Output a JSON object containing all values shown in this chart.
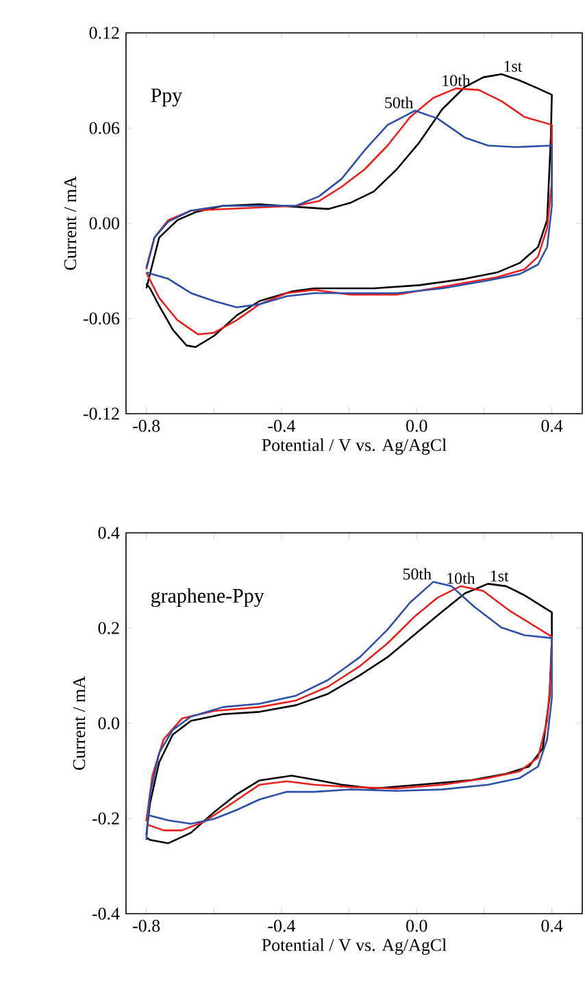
{
  "chart_data": [
    {
      "type": "line",
      "xlabel": "Potential / V vs. Ag/AgCl",
      "ylabel": "Current / mA",
      "xlim": [
        -0.86,
        0.49
      ],
      "ylim": [
        -0.12,
        0.12
      ],
      "xticks": [
        {
          "value": -0.8,
          "label": "-0.8"
        },
        {
          "value": -0.6,
          "label": null
        },
        {
          "value": -0.4,
          "label": "-0.4"
        },
        {
          "value": -0.2,
          "label": null
        },
        {
          "value": 0,
          "label": "0.0"
        },
        {
          "value": 0.2,
          "label": null
        },
        {
          "value": 0.4,
          "label": "0.4"
        }
      ],
      "yticks": [
        {
          "value": -0.12,
          "label": "-0.12"
        },
        {
          "value": -0.06,
          "label": "-0.06"
        },
        {
          "value": 0,
          "label": "0.00"
        },
        {
          "value": 0.06,
          "label": "0.06"
        },
        {
          "value": 0.12,
          "label": "0.12"
        }
      ],
      "annotations": [
        "Ppy"
      ],
      "series": [
        {
          "name": "1st",
          "color": "#000000",
          "x": [
            -0.8,
            -0.762,
            -0.708,
            -0.654,
            -0.573,
            -0.465,
            -0.33,
            -0.262,
            -0.195,
            -0.127,
            -0.059,
            0.008,
            0.076,
            0.143,
            0.197,
            0.251,
            0.305,
            0.359,
            0.4,
            0.397,
            0.386,
            0.359,
            0.305,
            0.238,
            0.143,
            0.008,
            -0.127,
            -0.303,
            -0.37,
            -0.465,
            -0.532,
            -0.6,
            -0.654,
            -0.681,
            -0.722,
            -0.762,
            -0.789,
            -0.8
          ],
          "values": [
            -0.041,
            -0.009,
            0.002,
            0.007,
            0.011,
            0.012,
            0.01,
            0.009,
            0.013,
            0.02,
            0.034,
            0.051,
            0.072,
            0.086,
            0.092,
            0.094,
            0.09,
            0.085,
            0.081,
            0.054,
            0.002,
            -0.015,
            -0.025,
            -0.031,
            -0.035,
            -0.039,
            -0.041,
            -0.041,
            -0.043,
            -0.049,
            -0.058,
            -0.071,
            -0.078,
            -0.077,
            -0.067,
            -0.052,
            -0.041,
            -0.038
          ]
        },
        {
          "name": "10th",
          "color": "#e8201e",
          "x": [
            -0.8,
            -0.776,
            -0.735,
            -0.668,
            -0.573,
            -0.465,
            -0.357,
            -0.289,
            -0.222,
            -0.154,
            -0.086,
            -0.019,
            0.049,
            0.116,
            0.184,
            0.251,
            0.319,
            0.4,
            0.4,
            0.386,
            0.359,
            0.319,
            0.238,
            0.076,
            -0.059,
            -0.195,
            -0.303,
            -0.384,
            -0.465,
            -0.532,
            -0.6,
            -0.647,
            -0.708,
            -0.762,
            -0.8
          ],
          "values": [
            -0.029,
            -0.009,
            0.002,
            0.008,
            null,
            null,
            0.011,
            0.014,
            0.023,
            0.034,
            0.049,
            0.067,
            0.079,
            0.085,
            0.084,
            0.077,
            0.067,
            0.062,
            0.026,
            -0.003,
            -0.021,
            -0.029,
            -0.034,
            -0.04,
            -0.045,
            -0.045,
            -0.042,
            -0.044,
            -0.051,
            -0.061,
            -0.069,
            -0.07,
            -0.061,
            -0.047,
            -0.031
          ]
        },
        {
          "name": "50th",
          "color": "#2e4fa8",
          "x": [
            -0.8,
            -0.776,
            -0.735,
            -0.668,
            -0.573,
            -0.465,
            -0.357,
            -0.289,
            -0.222,
            -0.154,
            -0.086,
            -0.005,
            0.062,
            0.143,
            0.211,
            0.292,
            0.4,
            0.4,
            0.386,
            0.359,
            0.305,
            0.211,
            0.076,
            -0.059,
            -0.195,
            -0.303,
            -0.384,
            -0.465,
            -0.532,
            -0.6,
            -0.668,
            -0.735,
            -0.8
          ],
          "values": [
            -0.028,
            -0.009,
            0.001,
            0.008,
            0.011,
            null,
            0.011,
            0.017,
            0.028,
            0.046,
            0.062,
            0.071,
            0.066,
            0.054,
            0.049,
            0.048,
            0.049,
            0.011,
            -0.015,
            -0.026,
            -0.032,
            -0.036,
            -0.041,
            -0.044,
            -0.044,
            -0.044,
            -0.046,
            -0.051,
            -0.053,
            -0.049,
            -0.044,
            -0.035,
            -0.031
          ]
        }
      ]
    },
    {
      "type": "line",
      "xlabel": "Potential / V vs. Ag/AgCl",
      "ylabel": "Current / mA",
      "xlim": [
        -0.86,
        0.49
      ],
      "ylim": [
        -0.4,
        0.4
      ],
      "xticks": [
        {
          "value": -0.8,
          "label": "-0.8"
        },
        {
          "value": -0.6,
          "label": null
        },
        {
          "value": -0.4,
          "label": "-0.4"
        },
        {
          "value": -0.2,
          "label": null
        },
        {
          "value": 0,
          "label": "0.0"
        },
        {
          "value": 0.2,
          "label": null
        },
        {
          "value": 0.4,
          "label": "0.4"
        }
      ],
      "yticks": [
        {
          "value": -0.4,
          "label": "-0.4"
        },
        {
          "value": -0.2,
          "label": "-0.2"
        },
        {
          "value": 0,
          "label": "0.0"
        },
        {
          "value": 0.2,
          "label": "0.2"
        },
        {
          "value": 0.4,
          "label": "0.4"
        }
      ],
      "annotations": [
        "graphene-Ppy"
      ],
      "series": [
        {
          "name": "1st",
          "color": "#000000",
          "x": [
            -0.8,
            -0.789,
            -0.762,
            -0.722,
            -0.668,
            -0.573,
            -0.465,
            -0.357,
            -0.262,
            -0.168,
            -0.086,
            -0.005,
            0.076,
            0.143,
            0.211,
            0.265,
            0.319,
            0.4,
            0.4,
            0.393,
            0.373,
            0.332,
            0.265,
            0.157,
            0.008,
            -0.127,
            -0.222,
            -0.289,
            -0.37,
            -0.465,
            -0.532,
            -0.6,
            -0.668,
            -0.735,
            -0.789,
            -0.8
          ],
          "values": [
            -0.235,
            -0.168,
            -0.082,
            -0.024,
            0.005,
            0.019,
            0.024,
            0.038,
            0.062,
            0.101,
            0.139,
            0.187,
            0.235,
            0.273,
            0.293,
            0.288,
            0.269,
            0.233,
            0.177,
            0.053,
            -0.053,
            -0.091,
            -0.106,
            -0.12,
            -0.129,
            -0.137,
            -0.129,
            -0.12,
            -0.11,
            -0.12,
            -0.149,
            -0.187,
            -0.23,
            -0.252,
            -0.245,
            -0.24
          ]
        },
        {
          "name": "10th",
          "color": "#e8201e",
          "x": [
            -0.8,
            -0.782,
            -0.749,
            -0.695,
            -0.6,
            -0.465,
            -0.357,
            -0.262,
            -0.168,
            -0.086,
            -0.005,
            0.062,
            0.13,
            0.197,
            0.278,
            0.4,
            0.397,
            0.386,
            0.359,
            0.305,
            0.211,
            0.076,
            -0.059,
            -0.195,
            -0.303,
            -0.384,
            -0.465,
            -0.546,
            -0.627,
            -0.695,
            -0.749,
            -0.8
          ],
          "values": [
            -0.206,
            -0.11,
            -0.034,
            0.01,
            0.026,
            0.034,
            0.048,
            0.077,
            0.12,
            0.168,
            0.225,
            0.264,
            0.288,
            0.278,
            0.235,
            0.182,
            0.101,
            0.005,
            -0.072,
            -0.101,
            -0.115,
            -0.129,
            -0.137,
            -0.134,
            -0.129,
            -0.122,
            -0.129,
            -0.168,
            -0.206,
            -0.225,
            -0.225,
            -0.212
          ]
        },
        {
          "name": "50th",
          "color": "#2e4fa8",
          "x": [
            -0.8,
            -0.789,
            -0.762,
            -0.722,
            -0.668,
            -0.573,
            -0.465,
            -0.357,
            -0.262,
            -0.168,
            -0.086,
            -0.019,
            0.049,
            0.103,
            0.17,
            0.251,
            0.319,
            0.4,
            0.4,
            0.386,
            0.359,
            0.305,
            0.211,
            0.076,
            -0.059,
            -0.195,
            -0.303,
            -0.384,
            -0.465,
            -0.532,
            -0.6,
            -0.668,
            -0.735,
            -0.8
          ],
          "values": [
            -0.245,
            -0.149,
            -0.062,
            -0.014,
            0.014,
            0.034,
            0.041,
            0.058,
            0.091,
            0.139,
            0.197,
            0.254,
            0.297,
            0.288,
            0.245,
            0.201,
            0.185,
            0.179,
            0.053,
            -0.034,
            -0.091,
            -0.115,
            -0.129,
            -0.139,
            -0.142,
            -0.139,
            -0.144,
            -0.144,
            -0.16,
            -0.182,
            -0.201,
            -0.211,
            -0.204,
            -0.192
          ]
        }
      ]
    }
  ]
}
